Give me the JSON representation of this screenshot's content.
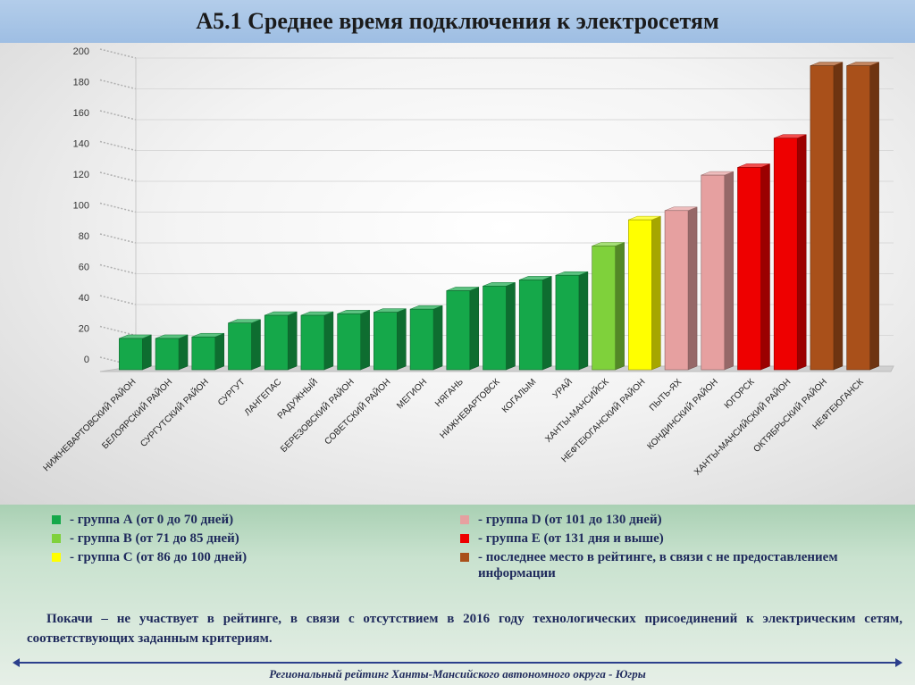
{
  "title": "А5.1 Среднее время подключения к электросетям",
  "chart_data": {
    "type": "bar",
    "ylim": [
      0,
      200
    ],
    "yticks": [
      0,
      20,
      40,
      60,
      80,
      100,
      120,
      140,
      160,
      180,
      200
    ],
    "categories": [
      "НИЖНЕВАРТОВСКИЙ РАЙОН",
      "БЕЛОЯРСКИЙ РАЙОН",
      "СУРГУТСКИЙ РАЙОН",
      "СУРГУТ",
      "ЛАНГЕПАС",
      "РАДУЖНЫЙ",
      "БЕРЕЗОВСКИЙ РАЙОН",
      "СОВЕТСКИЙ РАЙОН",
      "МЕГИОН",
      "НЯГАНЬ",
      "НИЖНЕВАРТОВСК",
      "КОГАЛЫМ",
      "УРАЙ",
      "ХАНТЫ-МАНСИЙСК",
      "НЕФТЕЮГАНСКИЙ РАЙОН",
      "ПЫТЬ-ЯХ",
      "КОНДИНСКИЙ РАЙОН",
      "ЮГОРСК",
      "ХАНТЫ-МАНСИЙСКИЙ РАЙОН",
      "ОКТЯБРЬСКИЙ РАЙОН",
      "НЕФТЕЮГАНСК"
    ],
    "values": [
      18,
      18,
      19,
      28,
      33,
      33,
      34,
      35,
      37,
      49,
      52,
      56,
      59,
      78,
      95,
      101,
      124,
      129,
      148,
      195,
      195
    ],
    "groups": [
      "A",
      "A",
      "A",
      "A",
      "A",
      "A",
      "A",
      "A",
      "A",
      "A",
      "A",
      "A",
      "A",
      "B",
      "C",
      "D",
      "D",
      "E",
      "E",
      "last",
      "last"
    ],
    "group_colors": {
      "A": "#15a84a",
      "B": "#7fd13b",
      "C": "#ffff00",
      "D": "#e6a0a0",
      "E": "#ee0000",
      "last": "#a9501a"
    }
  },
  "legend": {
    "left": [
      {
        "group": "A",
        "color": "#15a84a",
        "text": "-   группа А (от 0 до 70 дней)"
      },
      {
        "group": "B",
        "color": "#7fd13b",
        "text": "-   группа В (от 71 до 85 дней)"
      },
      {
        "group": "C",
        "color": "#ffff00",
        "text": "-   группа С (от 86 до 100 дней)"
      }
    ],
    "right": [
      {
        "group": "D",
        "color": "#e6a0a0",
        "text": "-   группа D (от 101 до 130 дней)"
      },
      {
        "group": "E",
        "color": "#ee0000",
        "text": "-   группа Е (от 131 дня и выше)"
      },
      {
        "group": "last",
        "color": "#a9501a",
        "text": "- последнее место в рейтинге, в связи с не предоставлением информации"
      }
    ]
  },
  "note": "Покачи – не участвует в рейтинге, в связи с отсутствием в 2016 году технологических присоединений к электрическим сетям, соответствующих заданным критериям.",
  "footer": "Региональный рейтинг Ханты-Мансийского автономного округа - Югры"
}
